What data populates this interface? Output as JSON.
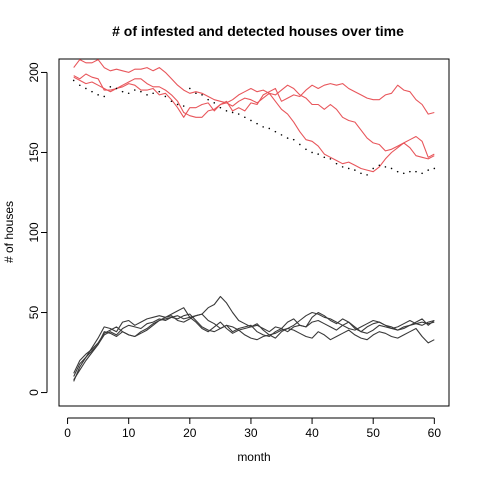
{
  "chart_data": {
    "type": "line",
    "title": "# of infested and detected houses over time",
    "xlabel": "month",
    "ylabel": "# of houses",
    "xlim": [
      -1.4,
      62.4
    ],
    "ylim": [
      -8.4,
      208.4
    ],
    "xticks": [
      0,
      10,
      20,
      30,
      40,
      50,
      60
    ],
    "yticks": [
      0,
      50,
      100,
      150,
      200
    ],
    "grid": false,
    "legend": "none",
    "box": true,
    "colors": {
      "infested": "#e8565b",
      "detected": "#3a3a3a",
      "dotted": "#000000"
    },
    "x": [
      1,
      2,
      3,
      4,
      5,
      6,
      7,
      8,
      9,
      10,
      11,
      12,
      13,
      14,
      15,
      16,
      17,
      18,
      19,
      20,
      21,
      22,
      23,
      24,
      25,
      26,
      27,
      28,
      29,
      30,
      31,
      32,
      33,
      34,
      35,
      36,
      37,
      38,
      39,
      40,
      41,
      42,
      43,
      44,
      45,
      46,
      47,
      48,
      49,
      50,
      51,
      52,
      53,
      54,
      55,
      56,
      57,
      58,
      59,
      60
    ],
    "series": [
      {
        "group": "infested",
        "style": "solid",
        "values": [
          203,
          208,
          206,
          206,
          208,
          203,
          201,
          202,
          201,
          200,
          202,
          202,
          203,
          201,
          203,
          200,
          196,
          192,
          189,
          187,
          188,
          187,
          185,
          183,
          182,
          181,
          183,
          186,
          188,
          190,
          188,
          189,
          187,
          186,
          189,
          192,
          190,
          186,
          184,
          180,
          180,
          177,
          180,
          177,
          172,
          170,
          169,
          164,
          159,
          156,
          155,
          151,
          152,
          154,
          156,
          158,
          160,
          157,
          147,
          149
        ]
      },
      {
        "group": "infested",
        "style": "solid",
        "values": [
          198,
          196,
          199,
          197,
          196,
          189,
          189,
          190,
          192,
          194,
          196,
          196,
          193,
          191,
          191,
          189,
          186,
          182,
          175,
          173,
          172,
          172,
          176,
          177,
          180,
          181,
          179,
          182,
          184,
          183,
          181,
          184,
          187,
          182,
          177,
          174,
          169,
          163,
          158,
          157,
          154,
          149,
          147,
          145,
          143,
          144,
          142,
          140,
          139,
          138,
          141,
          146,
          150,
          153,
          156,
          153,
          148,
          147,
          146,
          148
        ]
      },
      {
        "group": "infested",
        "style": "solid",
        "values": [
          197,
          195,
          193,
          194,
          192,
          190,
          188,
          190,
          191,
          193,
          192,
          189,
          189,
          190,
          186,
          187,
          183,
          178,
          172,
          178,
          178,
          180,
          181,
          176,
          180,
          182,
          176,
          178,
          176,
          181,
          180,
          186,
          188,
          190,
          182,
          184,
          186,
          185,
          189,
          192,
          190,
          192,
          193,
          192,
          193,
          190,
          188,
          186,
          184,
          183,
          183,
          186,
          187,
          192,
          189,
          188,
          183,
          180,
          174,
          175
        ]
      },
      {
        "group": "dotted",
        "style": "dotted",
        "values": [
          195,
          192,
          190,
          188,
          186,
          185,
          191,
          190,
          188,
          187,
          189,
          188,
          186,
          187,
          188,
          185,
          182,
          180,
          179,
          190,
          187,
          186,
          183,
          181,
          178,
          176,
          175,
          174,
          172,
          170,
          168,
          166,
          165,
          163,
          161,
          159,
          158,
          155,
          152,
          150,
          149,
          147,
          146,
          143,
          141,
          140,
          139,
          137,
          136,
          140,
          142,
          141,
          140,
          138,
          137,
          138,
          138,
          137,
          139,
          140
        ]
      },
      {
        "group": "detected",
        "style": "solid",
        "values": [
          8,
          14,
          20,
          25,
          30,
          38,
          37,
          35,
          38,
          36,
          35,
          37,
          39,
          42,
          45,
          46,
          47,
          46,
          48,
          49,
          45,
          41,
          39,
          38,
          40,
          42,
          38,
          40,
          41,
          42,
          38,
          36,
          35,
          38,
          40,
          38,
          41,
          42,
          41,
          44,
          45,
          43,
          41,
          39,
          42,
          44,
          40,
          38,
          41,
          43,
          44,
          42,
          40,
          41,
          43,
          45,
          43,
          42,
          44,
          45
        ]
      },
      {
        "group": "detected",
        "style": "solid",
        "values": [
          10,
          18,
          22,
          26,
          30,
          36,
          38,
          36,
          40,
          42,
          41,
          40,
          43,
          44,
          46,
          45,
          47,
          48,
          46,
          47,
          48,
          49,
          53,
          55,
          60,
          56,
          50,
          45,
          43,
          41,
          42,
          40,
          38,
          41,
          40,
          44,
          46,
          42,
          41,
          47,
          50,
          48,
          45,
          43,
          46,
          44,
          41,
          38,
          37,
          39,
          42,
          41,
          40,
          39,
          41,
          42,
          43,
          44,
          43,
          44
        ]
      },
      {
        "group": "detected",
        "style": "solid",
        "values": [
          7,
          16,
          22,
          28,
          34,
          41,
          40,
          38,
          44,
          45,
          42,
          44,
          46,
          47,
          48,
          47,
          49,
          51,
          53,
          47,
          44,
          40,
          38,
          41,
          44,
          40,
          37,
          39,
          36,
          34,
          33,
          35,
          36,
          34,
          38,
          40,
          39,
          37,
          35,
          34,
          38,
          36,
          33,
          35,
          37,
          39,
          36,
          34,
          33,
          36,
          38,
          37,
          35,
          34,
          36,
          38,
          40,
          35,
          31,
          33
        ]
      },
      {
        "group": "detected",
        "style": "solid",
        "values": [
          12,
          20,
          24,
          27,
          31,
          37,
          39,
          41,
          38,
          36,
          35,
          38,
          40,
          43,
          45,
          47,
          48,
          45,
          44,
          46,
          48,
          49,
          45,
          43,
          40,
          42,
          41,
          39,
          40,
          41,
          43,
          39,
          36,
          37,
          39,
          40,
          42,
          45,
          48,
          50,
          49,
          47,
          46,
          44,
          42,
          40,
          39,
          41,
          43,
          45,
          44,
          42,
          41,
          39,
          40,
          42,
          44,
          46,
          42,
          45
        ]
      }
    ]
  }
}
